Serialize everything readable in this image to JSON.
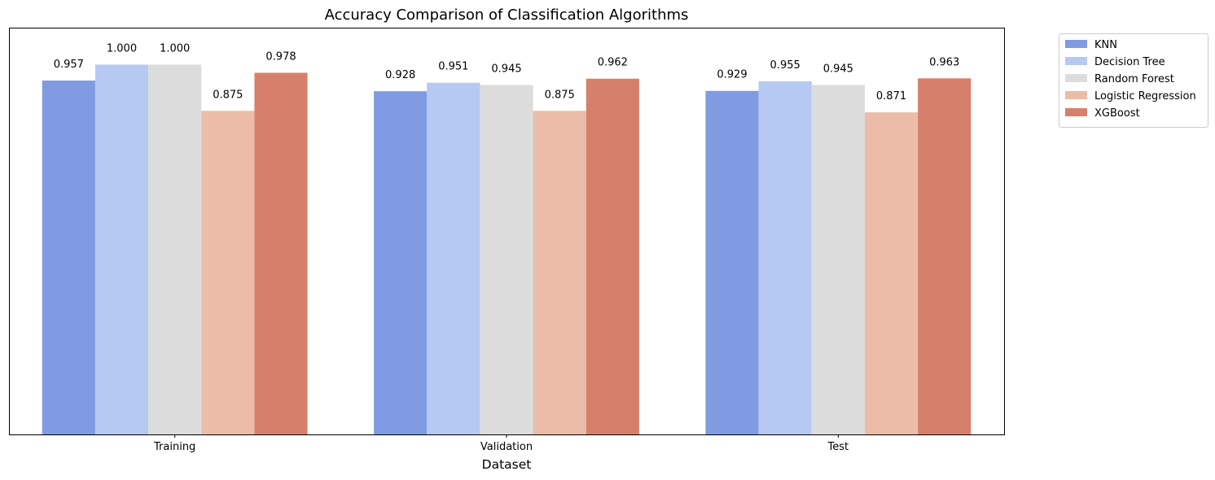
{
  "chart_data": {
    "type": "bar",
    "title": "Accuracy Comparison of Classification Algorithms",
    "xlabel": "Dataset",
    "ylabel": "",
    "categories": [
      "Training",
      "Validation",
      "Test"
    ],
    "series": [
      {
        "name": "KNN",
        "values": [
          0.957,
          0.928,
          0.929
        ],
        "color": "#809BE2",
        "labels": [
          "0.957",
          "0.928",
          "0.929"
        ]
      },
      {
        "name": "Decision Tree",
        "values": [
          1.0,
          0.951,
          0.955
        ],
        "color": "#B6C9F3",
        "labels": [
          "1.000",
          "0.951",
          "0.955"
        ]
      },
      {
        "name": "Random Forest",
        "values": [
          1.0,
          0.945,
          0.945
        ],
        "color": "#DCDCDC",
        "labels": [
          "1.000",
          "0.945",
          "0.945"
        ]
      },
      {
        "name": "Logistic Regression",
        "values": [
          0.875,
          0.875,
          0.871
        ],
        "color": "#EBBDA8",
        "labels": [
          "0.875",
          "0.875",
          "0.871"
        ]
      },
      {
        "name": "XGBoost",
        "values": [
          0.978,
          0.962,
          0.963
        ],
        "color": "#D6806B",
        "labels": [
          "0.978",
          "0.962",
          "0.963"
        ]
      }
    ],
    "ylim": [
      0,
      1.1
    ],
    "y_ticks_visible": false,
    "grid": false,
    "legend_position": "outside-top-right"
  }
}
